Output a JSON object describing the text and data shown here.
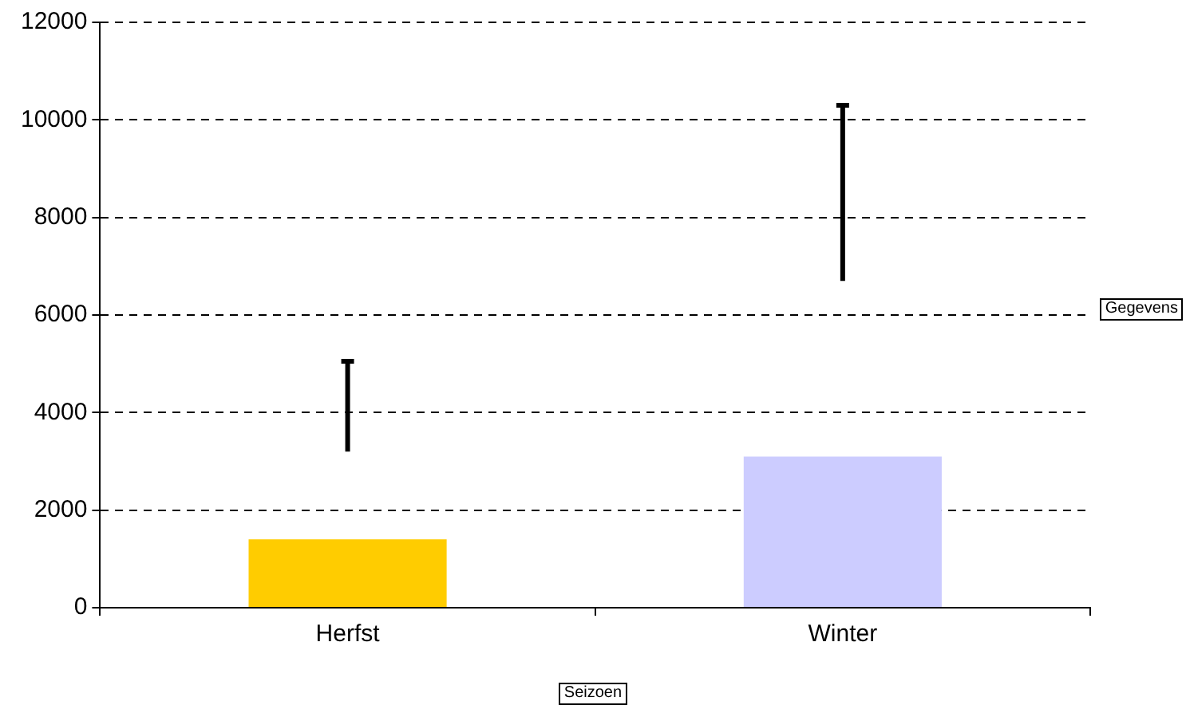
{
  "chart_data": {
    "type": "bar",
    "xlabel": "Seizoen",
    "annotations": [
      "Gegevens"
    ],
    "categories": [
      "Herfst",
      "Winter"
    ],
    "values": [
      1400,
      3100
    ],
    "colors": [
      "#ffcc00",
      "#ccccff"
    ],
    "errors": [
      [
        3200,
        5050
      ],
      [
        6700,
        10300
      ]
    ],
    "ylim": [
      0,
      12000
    ],
    "yticks": [
      0,
      2000,
      4000,
      6000,
      8000,
      10000,
      12000
    ],
    "grid": "y",
    "legend": false
  }
}
